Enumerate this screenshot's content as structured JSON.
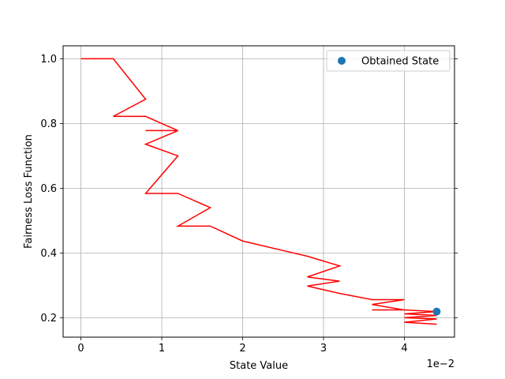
{
  "chart_data": {
    "type": "line",
    "xlabel": "State Value",
    "ylabel": "Fairness Loss Function",
    "x_scale_label": "1e−2",
    "xlim": [
      -0.22,
      4.62
    ],
    "ylim": [
      0.14,
      1.04
    ],
    "xticks": [
      0,
      1,
      2,
      3,
      4
    ],
    "xtick_labels": [
      "0",
      "1",
      "2",
      "3",
      "4"
    ],
    "yticks": [
      0.2,
      0.4,
      0.6,
      0.8,
      1.0
    ],
    "ytick_labels": [
      "0.2",
      "0.4",
      "0.6",
      "0.8",
      "1.0"
    ],
    "grid": true,
    "legend_position": "top-right",
    "series": [
      {
        "kind": "line",
        "color": "#ff0000",
        "x": [
          0.0,
          0.4,
          0.8,
          0.4,
          0.8,
          1.2,
          0.8,
          1.2,
          0.8,
          1.2,
          0.8,
          1.2,
          1.6,
          1.2,
          1.6,
          2.0,
          2.8,
          3.2,
          2.8,
          3.2,
          2.8,
          3.2,
          3.6,
          4.0,
          3.6,
          4.0,
          3.6,
          4.0,
          4.4,
          4.0,
          4.4,
          4.0,
          4.4,
          4.0,
          4.4
        ],
        "y": [
          1.0,
          1.0,
          0.875,
          0.822,
          0.822,
          0.778,
          0.778,
          0.778,
          0.736,
          0.7,
          0.584,
          0.584,
          0.54,
          0.483,
          0.483,
          0.437,
          0.39,
          0.36,
          0.326,
          0.313,
          0.298,
          0.275,
          0.256,
          0.256,
          0.241,
          0.224,
          0.224,
          0.224,
          0.219,
          0.212,
          0.207,
          0.2,
          0.196,
          0.186,
          0.18
        ]
      },
      {
        "kind": "scatter",
        "name": "Obtained State",
        "color": "#1f77b4",
        "x": [
          4.4
        ],
        "y": [
          0.219
        ]
      }
    ]
  }
}
